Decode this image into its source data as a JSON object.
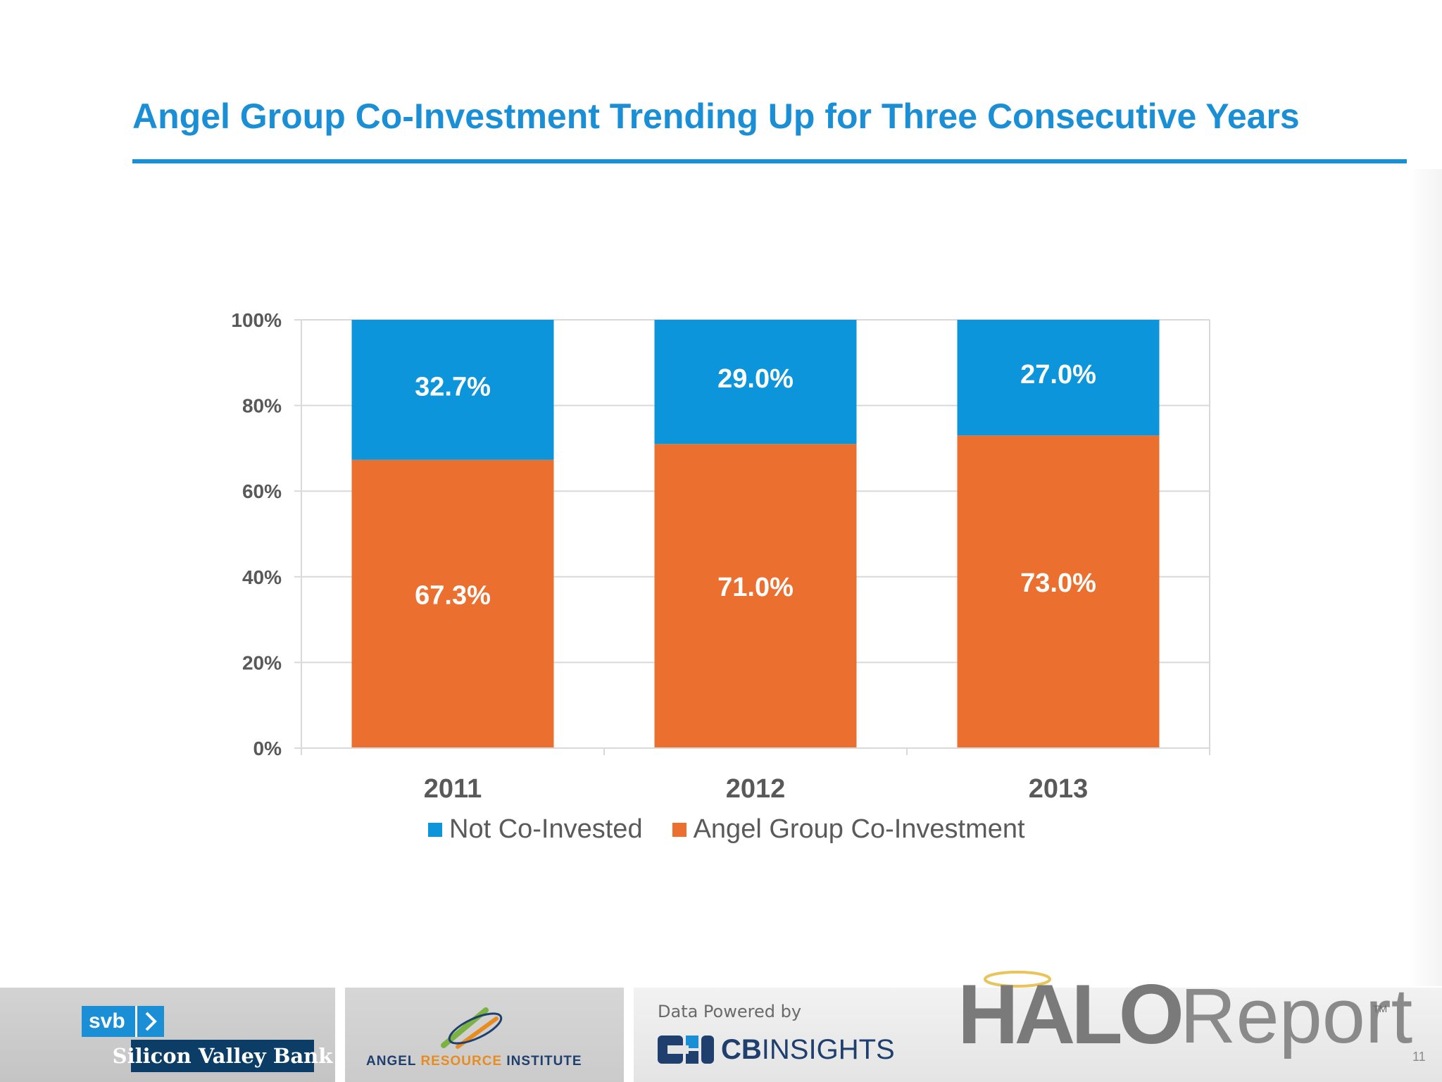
{
  "slide": {
    "title": "Angel Group Co-Investment Trending Up for Three Consecutive Years",
    "page_number": "11"
  },
  "colors": {
    "title": "#1a8fd6",
    "not_co_invested": "#0d95db",
    "angel_group": "#eb6f2e",
    "grid": "#d9d9d9",
    "axis_text": "#595959"
  },
  "chart_data": {
    "type": "bar",
    "stacked": true,
    "categories": [
      "2011",
      "2012",
      "2013"
    ],
    "series": [
      {
        "name": "Angel Group Co-Investment",
        "values": [
          67.3,
          71.0,
          73.0
        ],
        "labels": [
          "67.3%",
          "71.0%",
          "73.0%"
        ],
        "color": "#eb6f2e"
      },
      {
        "name": "Not Co-Invested",
        "values": [
          32.7,
          29.0,
          27.0
        ],
        "labels": [
          "32.7%",
          "29.0%",
          "27.0%"
        ],
        "color": "#0d95db"
      }
    ],
    "ylim": [
      0,
      100
    ],
    "yticks": [
      "0%",
      "20%",
      "40%",
      "60%",
      "80%",
      "100%"
    ],
    "grid": true,
    "legend_position": "bottom",
    "legend_order": [
      "Not Co-Invested",
      "Angel Group Co-Investment"
    ]
  },
  "footer": {
    "svb_short": "svb",
    "svb_name": "Silicon Valley Bank",
    "ari_left": "ANGEL ",
    "ari_accent": "RESOURCE",
    "ari_right": " INSTITUTE",
    "cb_powered": "Data Powered by",
    "cb_bold": "CB",
    "cb_light": "INSIGHTS",
    "halo_bold": "HALO",
    "halo_light": "Report",
    "halo_tm": "TM"
  }
}
